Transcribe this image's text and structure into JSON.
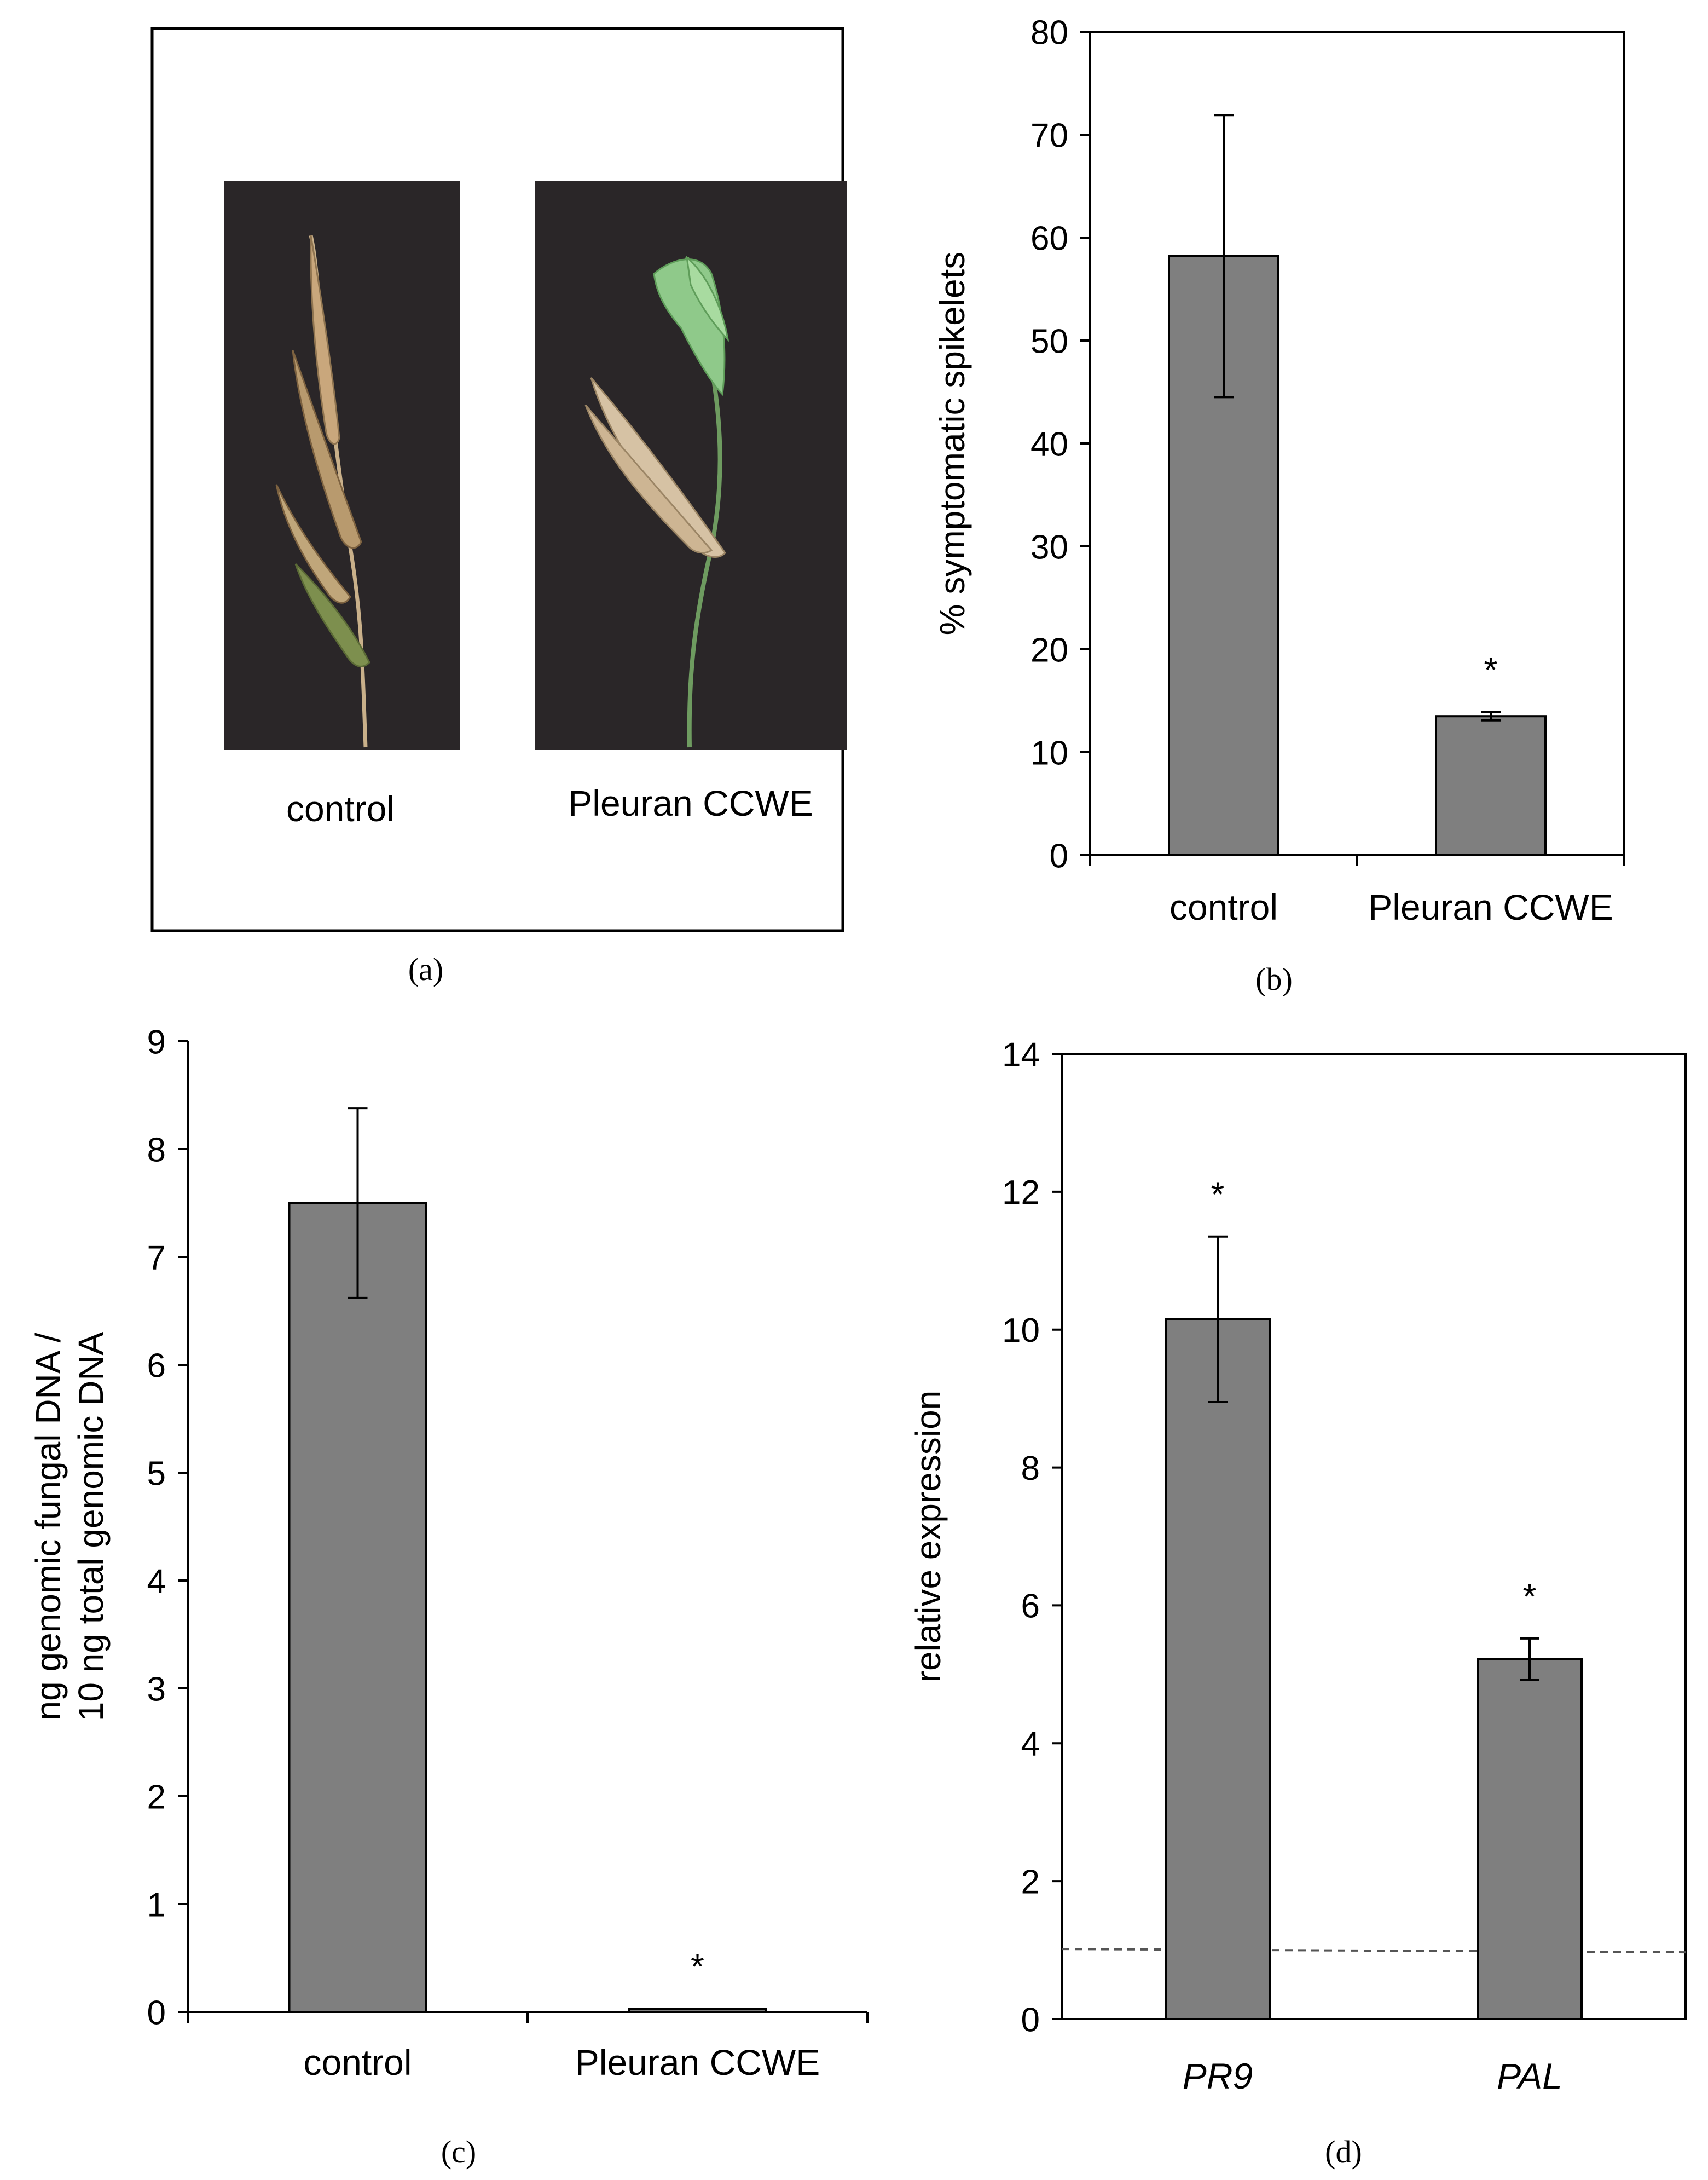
{
  "panels": {
    "a": {
      "label": "(a)",
      "photo_labels": [
        "control",
        "Pleuran CCWE"
      ]
    },
    "b": {
      "label": "(b)"
    },
    "c": {
      "label": "(c)"
    },
    "d": {
      "label": "(d)"
    }
  },
  "colors": {
    "bar_fill": "#7f7f7f",
    "bar_stroke": "#000000",
    "axis": "#000000",
    "photo_background": "#2a2628",
    "stem_brown": "#c9b08a",
    "stem_green": "#8fc98a",
    "reference_line": "#555555"
  },
  "chart_data": [
    {
      "id": "b",
      "type": "bar",
      "ylabel": "% symptomatic spikelets",
      "categories": [
        "control",
        "Pleuran CCWE"
      ],
      "values": [
        58.2,
        13.5
      ],
      "errors": [
        13.7,
        0.4
      ],
      "significance": [
        "",
        "*"
      ],
      "ylim": [
        0,
        80
      ],
      "yticks": [
        0,
        10,
        20,
        30,
        40,
        50,
        60,
        70,
        80
      ],
      "grid": false
    },
    {
      "id": "c",
      "type": "bar",
      "ylabel_lines": [
        "ng genomic fungal DNA /",
        "10 ng total genomic DNA"
      ],
      "categories": [
        "control",
        "Pleuran CCWE"
      ],
      "values": [
        7.5,
        0.03
      ],
      "errors": [
        0.88,
        0
      ],
      "significance": [
        "",
        "*"
      ],
      "ylim": [
        0,
        9
      ],
      "yticks": [
        0,
        1,
        2,
        3,
        4,
        5,
        6,
        7,
        8,
        9
      ],
      "grid": false
    },
    {
      "id": "d",
      "type": "bar",
      "ylabel": "relative expression",
      "categories": [
        "PR9",
        "PAL"
      ],
      "categories_italic": true,
      "values": [
        10.15,
        5.22
      ],
      "errors": [
        1.2,
        0.3
      ],
      "significance": [
        "*",
        "*"
      ],
      "reference_line": 1,
      "ylim": [
        0,
        14
      ],
      "yticks": [
        0,
        2,
        4,
        6,
        8,
        10,
        12,
        14
      ],
      "grid": false
    }
  ]
}
